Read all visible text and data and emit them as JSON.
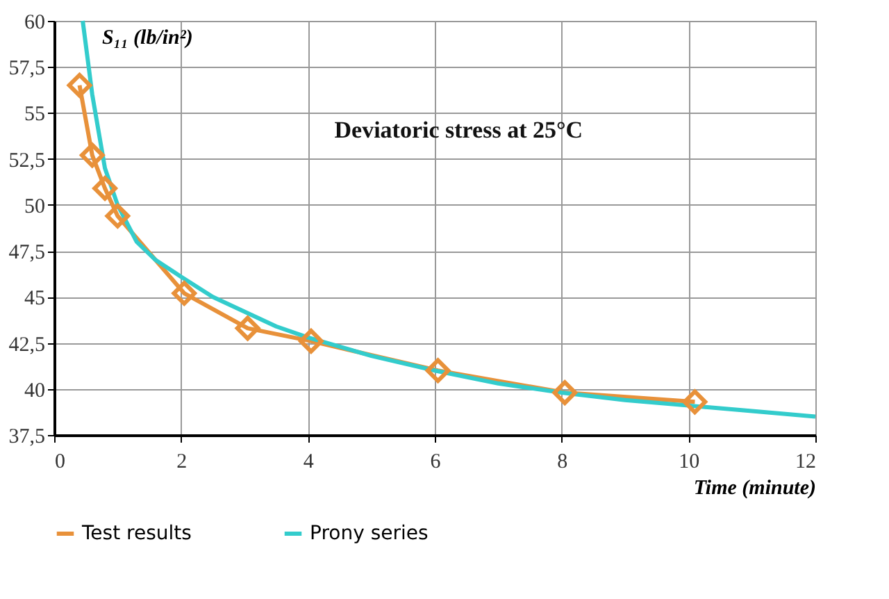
{
  "chart_data": {
    "type": "line",
    "title": "Deviatoric stress at 25°C",
    "xlabel": "Time (minute)",
    "ylabel": "S₁₁ (lb/in²)",
    "series": [
      {
        "name": "Test results",
        "color": "#e8913a",
        "marker": "diamond",
        "x": [
          0.4,
          0.6,
          0.8,
          1.0,
          2.05,
          3.05,
          4.05,
          6.05,
          8.05,
          10.1
        ],
        "values": [
          56.5,
          52.7,
          50.9,
          49.4,
          45.2,
          43.3,
          42.6,
          41.0,
          39.8,
          39.3
        ]
      },
      {
        "name": "Prony series",
        "color": "#33cccc",
        "marker": "none",
        "x": [
          0.45,
          0.6,
          0.8,
          1.0,
          1.3,
          1.6,
          2,
          2.5,
          3,
          3.5,
          4,
          5,
          6,
          7,
          8,
          9,
          10,
          11,
          12
        ],
        "values": [
          60,
          56,
          52,
          50,
          48,
          47,
          46.1,
          45,
          44.2,
          43.4,
          42.8,
          41.8,
          41,
          40.3,
          39.8,
          39.4,
          39.1,
          38.8,
          38.5
        ]
      }
    ],
    "xlim": [
      0,
      12
    ],
    "xticks": [
      0,
      2,
      4,
      6,
      8,
      10,
      12
    ],
    "ylim": [
      37.5,
      60
    ],
    "yticks": [
      {
        "value": 37.5,
        "label": "37,5"
      },
      40,
      {
        "value": 42.5,
        "label": "42,5"
      },
      45,
      {
        "value": 47.5,
        "label": "47,5"
      },
      50,
      {
        "value": 52.5,
        "label": "52,5"
      },
      55,
      {
        "value": 57.5,
        "label": "57,5"
      },
      60
    ],
    "grid": true,
    "legend": "bottom"
  }
}
